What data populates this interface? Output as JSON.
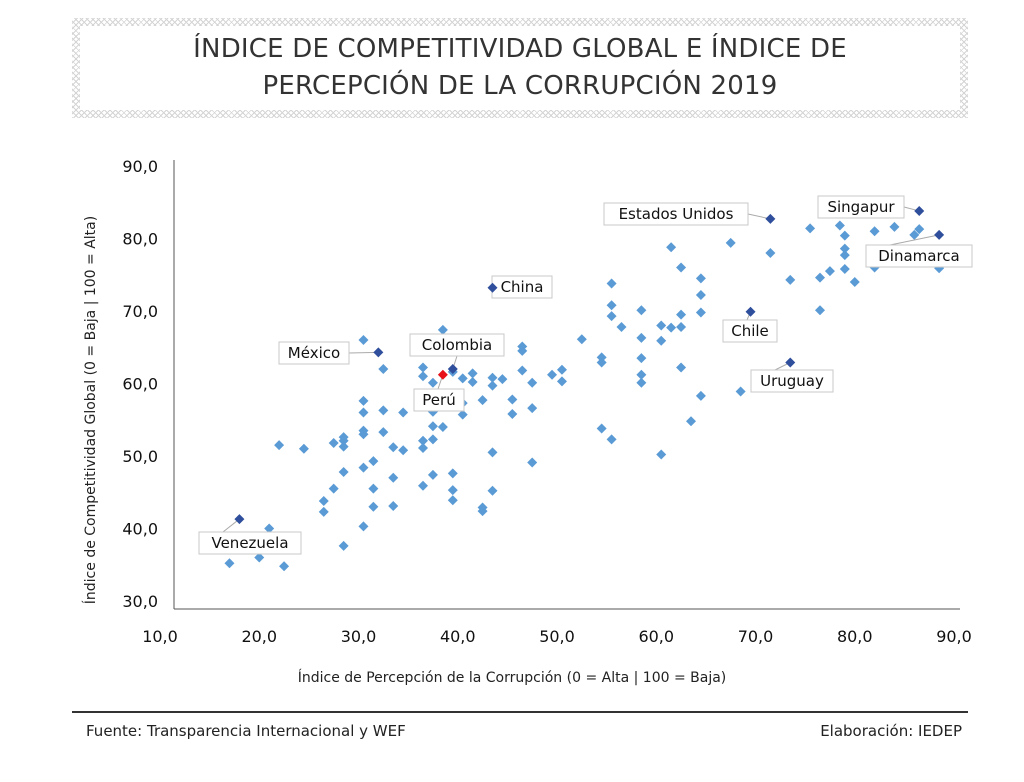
{
  "chart_data": {
    "type": "scatter",
    "title_lines": [
      "ÍNDICE DE COMPETITIVIDAD GLOBAL E ÍNDICE DE",
      "PERCEPCIÓN DE LA CORRUPCIÓN 2019"
    ],
    "xlabel": "Índice de Percepción de la Corrupción (0 = Alta | 100 = Baja)",
    "ylabel": "Índice de Competitividad Global (0 = Baja | 100 = Alta)",
    "xlim": [
      10,
      90
    ],
    "ylim": [
      30,
      90
    ],
    "xticks": [
      "10,0",
      "20,0",
      "30,0",
      "40,0",
      "50,0",
      "60,0",
      "70,0",
      "80,0",
      "90,0"
    ],
    "yticks": [
      "30,0",
      "40,0",
      "50,0",
      "60,0",
      "70,0",
      "80,0",
      "90,0"
    ],
    "colors": {
      "points": "#5b9bd5",
      "highlight": "#2f4f9c",
      "peru": "#e8121b"
    },
    "labeled_points": [
      {
        "name": "Estados Unidos",
        "x": 71.5,
        "y": 82.7
      },
      {
        "name": "Singapur",
        "x": 86.5,
        "y": 83.8
      },
      {
        "name": "Dinamarca",
        "x": 88.5,
        "y": 80.5
      },
      {
        "name": "China",
        "x": 43.5,
        "y": 73.2
      },
      {
        "name": "Chile",
        "x": 69.5,
        "y": 69.9
      },
      {
        "name": "México",
        "x": 32.0,
        "y": 64.3
      },
      {
        "name": "Colombia",
        "x": 39.5,
        "y": 62.0
      },
      {
        "name": "Perú",
        "x": 38.5,
        "y": 61.2
      },
      {
        "name": "Uruguay",
        "x": 73.5,
        "y": 62.9
      },
      {
        "name": "Venezuela",
        "x": 18.0,
        "y": 41.3
      }
    ],
    "points": [
      [
        17,
        35.2
      ],
      [
        20,
        36
      ],
      [
        22.5,
        34.8
      ],
      [
        21,
        40
      ],
      [
        22,
        51.5
      ],
      [
        24.5,
        51
      ],
      [
        26.5,
        42.3
      ],
      [
        26.5,
        43.8
      ],
      [
        27.5,
        45.5
      ],
      [
        27.5,
        51.8
      ],
      [
        28.5,
        47.8
      ],
      [
        28.5,
        37.6
      ],
      [
        28.5,
        51.3
      ],
      [
        28.5,
        52.6
      ],
      [
        28.5,
        52.1
      ],
      [
        30.5,
        40.3
      ],
      [
        30.5,
        48.4
      ],
      [
        30.5,
        53
      ],
      [
        30.5,
        53.5
      ],
      [
        30.5,
        56
      ],
      [
        30.5,
        57.6
      ],
      [
        30.5,
        66
      ],
      [
        31.5,
        49.3
      ],
      [
        31.5,
        45.5
      ],
      [
        31.5,
        43
      ],
      [
        32.5,
        53.3
      ],
      [
        32.5,
        56.3
      ],
      [
        32.5,
        62
      ],
      [
        33.5,
        51.2
      ],
      [
        33.5,
        47
      ],
      [
        33.5,
        43.1
      ],
      [
        34.5,
        50.8
      ],
      [
        34.5,
        56
      ],
      [
        36.5,
        45.9
      ],
      [
        36.5,
        51.1
      ],
      [
        36.5,
        52.1
      ],
      [
        36.5,
        61
      ],
      [
        36.5,
        62.2
      ],
      [
        37.5,
        47.4
      ],
      [
        37.5,
        54.1
      ],
      [
        37.5,
        56.1
      ],
      [
        37.5,
        60.1
      ],
      [
        37.5,
        52.3
      ],
      [
        38.5,
        54
      ],
      [
        38.5,
        67.4
      ],
      [
        39.5,
        47.6
      ],
      [
        39.5,
        45.3
      ],
      [
        39.5,
        43.9
      ],
      [
        39.5,
        61.6
      ],
      [
        40.5,
        57.3
      ],
      [
        40.5,
        60.7
      ],
      [
        40.5,
        55.7
      ],
      [
        41.5,
        61.4
      ],
      [
        41.5,
        60.2
      ],
      [
        42.5,
        42.9
      ],
      [
        42.5,
        42.4
      ],
      [
        42.5,
        57.7
      ],
      [
        43.5,
        50.5
      ],
      [
        43.5,
        45.2
      ],
      [
        43.5,
        60.8
      ],
      [
        43.5,
        59.7
      ],
      [
        44.5,
        60.6
      ],
      [
        45.5,
        55.8
      ],
      [
        45.5,
        57.8
      ],
      [
        46.5,
        64.5
      ],
      [
        46.5,
        65.1
      ],
      [
        46.5,
        61.8
      ],
      [
        47.5,
        60.1
      ],
      [
        47.5,
        49.1
      ],
      [
        47.5,
        56.6
      ],
      [
        49.5,
        61.2
      ],
      [
        50.5,
        61.9
      ],
      [
        50.5,
        60.3
      ],
      [
        52.5,
        66.1
      ],
      [
        54.5,
        63.6
      ],
      [
        54.5,
        62.9
      ],
      [
        54.5,
        53.8
      ],
      [
        55.5,
        73.8
      ],
      [
        55.5,
        70.8
      ],
      [
        55.5,
        69.3
      ],
      [
        55.5,
        52.3
      ],
      [
        56.5,
        67.8
      ],
      [
        58.5,
        70.1
      ],
      [
        58.5,
        61.2
      ],
      [
        58.5,
        60.1
      ],
      [
        58.5,
        66.3
      ],
      [
        58.5,
        63.5
      ],
      [
        60.5,
        68
      ],
      [
        60.5,
        65.9
      ],
      [
        60.5,
        50.2
      ],
      [
        61.5,
        78.8
      ],
      [
        61.5,
        67.7
      ],
      [
        62.5,
        76
      ],
      [
        62.5,
        69.5
      ],
      [
        62.5,
        67.8
      ],
      [
        62.5,
        62.2
      ],
      [
        63.5,
        54.8
      ],
      [
        64.5,
        74.5
      ],
      [
        64.5,
        72.2
      ],
      [
        64.5,
        69.8
      ],
      [
        64.5,
        58.3
      ],
      [
        67.5,
        79.4
      ],
      [
        68.5,
        58.9
      ],
      [
        71.5,
        78
      ],
      [
        73.5,
        74.3
      ],
      [
        75.5,
        81.4
      ],
      [
        76.5,
        74.6
      ],
      [
        76.5,
        70.1
      ],
      [
        77.5,
        75.5
      ],
      [
        78.5,
        81.8
      ],
      [
        79,
        80.4
      ],
      [
        79,
        78.6
      ],
      [
        79,
        77.7
      ],
      [
        79,
        75.8
      ],
      [
        80,
        74
      ],
      [
        82,
        81
      ],
      [
        82,
        76
      ],
      [
        84,
        81.6
      ],
      [
        86,
        80.5
      ],
      [
        86.5,
        81.3
      ],
      [
        88.5,
        75.9
      ]
    ]
  },
  "footer": {
    "source": "Fuente: Transparencia Internacional y WEF",
    "credit": "Elaboración: IEDEP"
  }
}
